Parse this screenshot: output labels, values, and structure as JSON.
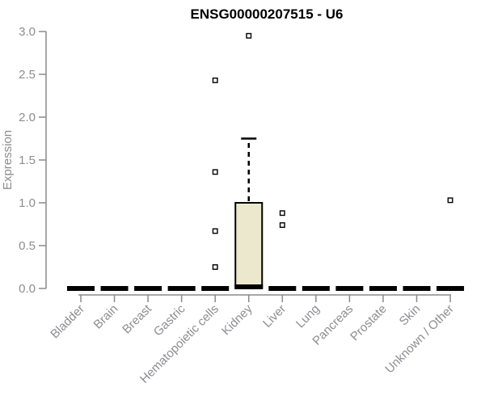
{
  "page": {
    "background": "#ffffff"
  },
  "chart_data": {
    "type": "boxplot",
    "title": "ENSG00000207515 - U6",
    "xlabel": "",
    "ylabel": "Expression",
    "ylim": [
      0.0,
      3.0
    ],
    "yticks": [
      0.0,
      0.5,
      1.0,
      1.5,
      2.0,
      2.5,
      3.0
    ],
    "grid": false,
    "legend": null,
    "colors": {
      "box_fill": "#ece8cd",
      "box_border": "#000000",
      "collapsed_box": "#000000",
      "axis_line": "#8a8a8a",
      "axis_text": "#8d8d92",
      "title": "#000000",
      "outlier_fill": "#ffffff",
      "outlier_border": "#000000"
    },
    "categories": [
      "Bladder",
      "Brain",
      "Breast",
      "Gastric",
      "Hematopoietic cells",
      "Kidney",
      "Liver",
      "Lung",
      "Pancreas",
      "Prostate",
      "Skin",
      "Unknown / Other"
    ],
    "boxes": [
      {
        "category": "Bladder",
        "q1": 0.0,
        "median": 0.0,
        "q3": 0.0,
        "whisker_low": 0.0,
        "whisker_high": 0.0,
        "outliers": []
      },
      {
        "category": "Brain",
        "q1": 0.0,
        "median": 0.0,
        "q3": 0.0,
        "whisker_low": 0.0,
        "whisker_high": 0.0,
        "outliers": []
      },
      {
        "category": "Breast",
        "q1": 0.0,
        "median": 0.0,
        "q3": 0.0,
        "whisker_low": 0.0,
        "whisker_high": 0.0,
        "outliers": []
      },
      {
        "category": "Gastric",
        "q1": 0.0,
        "median": 0.0,
        "q3": 0.0,
        "whisker_low": 0.0,
        "whisker_high": 0.0,
        "outliers": []
      },
      {
        "category": "Hematopoietic cells",
        "q1": 0.0,
        "median": 0.0,
        "q3": 0.0,
        "whisker_low": 0.0,
        "whisker_high": 0.0,
        "outliers": [
          2.43,
          1.36,
          0.67,
          0.25
        ]
      },
      {
        "category": "Kidney",
        "q1": 0.0,
        "median": 0.0,
        "q3": 1.0,
        "whisker_low": 0.0,
        "whisker_high": 1.75,
        "outliers": [
          2.95
        ]
      },
      {
        "category": "Liver",
        "q1": 0.0,
        "median": 0.0,
        "q3": 0.0,
        "whisker_low": 0.0,
        "whisker_high": 0.0,
        "outliers": [
          0.88,
          0.74
        ]
      },
      {
        "category": "Lung",
        "q1": 0.0,
        "median": 0.0,
        "q3": 0.0,
        "whisker_low": 0.0,
        "whisker_high": 0.0,
        "outliers": []
      },
      {
        "category": "Pancreas",
        "q1": 0.0,
        "median": 0.0,
        "q3": 0.0,
        "whisker_low": 0.0,
        "whisker_high": 0.0,
        "outliers": []
      },
      {
        "category": "Prostate",
        "q1": 0.0,
        "median": 0.0,
        "q3": 0.0,
        "whisker_low": 0.0,
        "whisker_high": 0.0,
        "outliers": []
      },
      {
        "category": "Skin",
        "q1": 0.0,
        "median": 0.0,
        "q3": 0.0,
        "whisker_low": 0.0,
        "whisker_high": 0.0,
        "outliers": []
      },
      {
        "category": "Unknown / Other",
        "q1": 0.0,
        "median": 0.0,
        "q3": 0.0,
        "whisker_low": 0.0,
        "whisker_high": 0.0,
        "outliers": [
          1.03
        ]
      }
    ]
  }
}
